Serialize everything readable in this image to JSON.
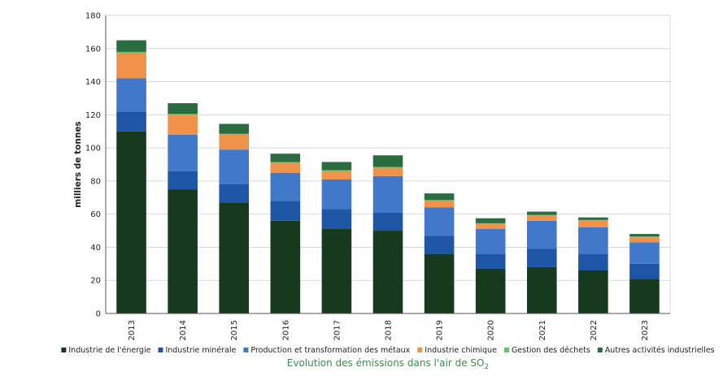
{
  "chart_data": {
    "type": "bar",
    "stacked": true,
    "title": "",
    "caption": "Evolution des émissions dans l'air de SO",
    "caption_subscript": "2",
    "xlabel": "",
    "ylabel": "milliers de tonnes",
    "ylim": [
      0,
      180
    ],
    "yticks": [
      0,
      20,
      40,
      60,
      80,
      100,
      120,
      140,
      160,
      180
    ],
    "grid": true,
    "legend_position": "bottom",
    "categories": [
      "2013",
      "2014",
      "2015",
      "2016",
      "2017",
      "2018",
      "2019",
      "2020",
      "2021",
      "2022",
      "2023"
    ],
    "series": [
      {
        "name": "Industrie de l'énergie",
        "color": "#173a1e",
        "values": [
          110,
          75,
          67,
          56,
          51,
          50,
          36,
          27,
          28,
          26,
          21
        ]
      },
      {
        "name": "Industrie minérale",
        "color": "#1f55a5",
        "values": [
          12,
          11,
          11,
          12,
          12,
          11,
          11,
          9,
          11,
          10,
          9
        ]
      },
      {
        "name": "Production et transformation des métaux",
        "color": "#4178c9",
        "values": [
          20,
          22,
          21,
          17,
          18,
          22,
          17,
          15,
          17,
          16,
          13
        ]
      },
      {
        "name": "Industrie chimique",
        "color": "#f0924a",
        "values": [
          15,
          12,
          9,
          6,
          5,
          5,
          4,
          3,
          3,
          4,
          3
        ]
      },
      {
        "name": "Gestion des déchets",
        "color": "#6abf6a",
        "values": [
          1,
          0.5,
          0.5,
          0.5,
          0.5,
          0.5,
          0.5,
          0.5,
          0.5,
          0.5,
          0.5
        ]
      },
      {
        "name": "Autres activités industrielles",
        "color": "#2a6b3f",
        "values": [
          7,
          6.5,
          6,
          5,
          5,
          7,
          4,
          3,
          2,
          1.5,
          1.5
        ]
      }
    ]
  }
}
